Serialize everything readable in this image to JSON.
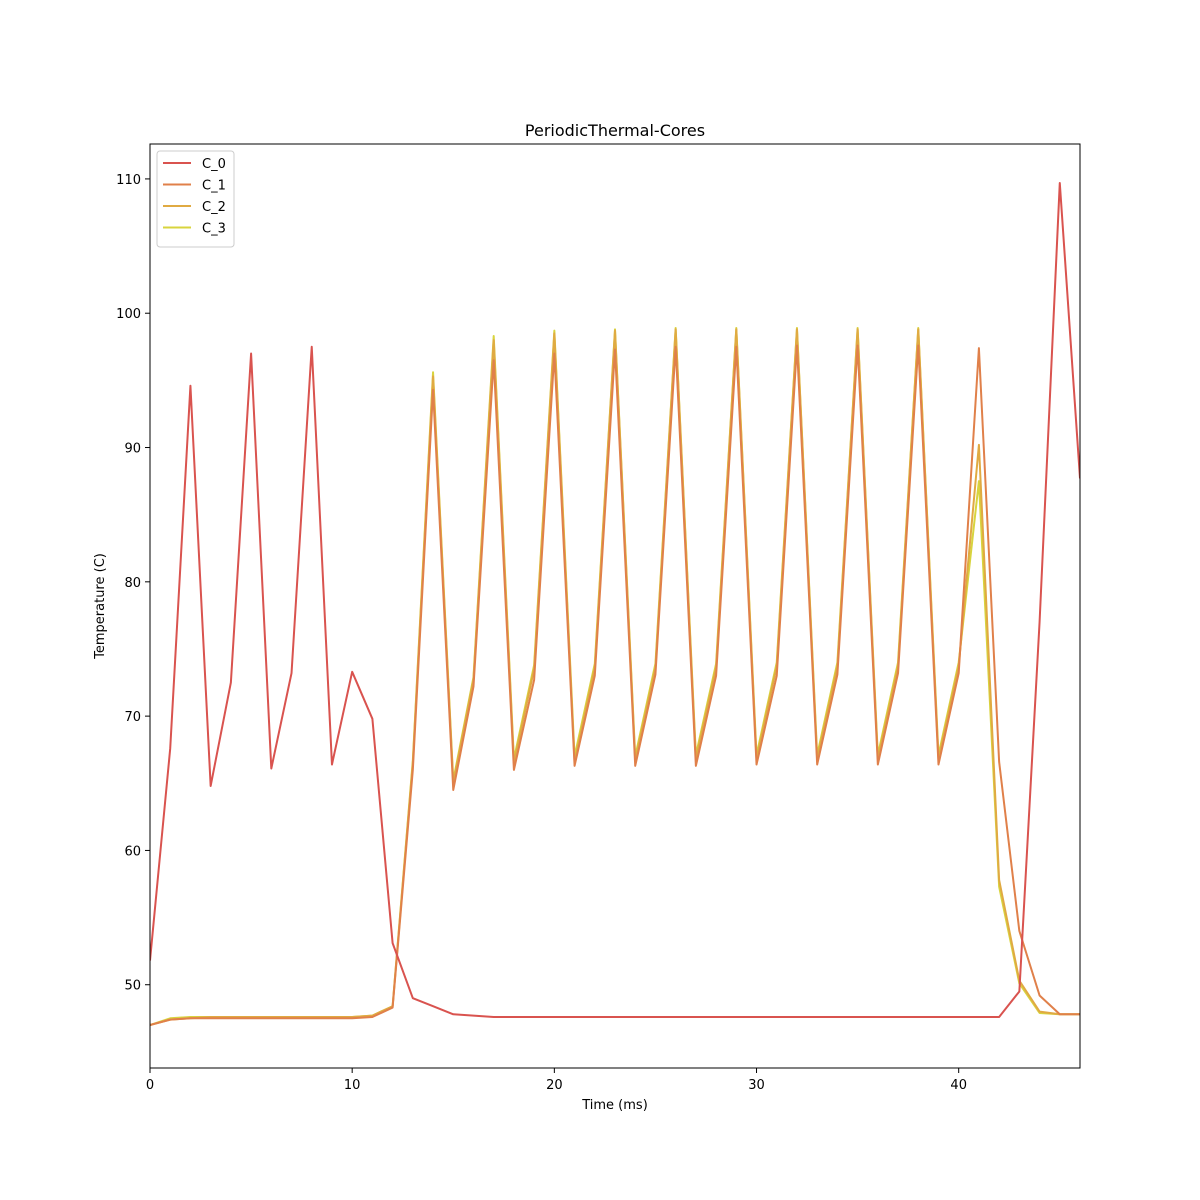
{
  "chart_data": {
    "type": "line",
    "title": "PeriodicThermal-Cores",
    "xlabel": "Time (ms)",
    "ylabel": "Temperature (C)",
    "xlim": [
      0,
      46
    ],
    "ylim": [
      43.8,
      112.6
    ],
    "xticks": [
      0,
      10,
      20,
      30,
      40
    ],
    "yticks": [
      50,
      60,
      70,
      80,
      90,
      100,
      110
    ],
    "grid": false,
    "legend_position": "upper-left",
    "x": [
      0,
      1,
      2,
      3,
      4,
      5,
      6,
      7,
      8,
      9,
      10,
      11,
      12,
      13,
      14,
      15,
      16,
      17,
      18,
      19,
      20,
      21,
      22,
      23,
      24,
      25,
      26,
      27,
      28,
      29,
      30,
      31,
      32,
      33,
      34,
      35,
      36,
      37,
      38,
      39,
      40,
      41,
      42,
      43,
      44,
      45,
      46
    ],
    "series": [
      {
        "name": "C_0",
        "color": "#d9534f",
        "values": [
          51.8,
          67.6,
          94.6,
          64.8,
          72.5,
          97.0,
          66.1,
          73.2,
          97.5,
          66.4,
          73.3,
          69.8,
          53.1,
          49.0,
          48.4,
          47.8,
          47.7,
          47.6,
          47.6,
          47.6,
          47.6,
          47.6,
          47.6,
          47.6,
          47.6,
          47.6,
          47.6,
          47.6,
          47.6,
          47.6,
          47.6,
          47.6,
          47.6,
          47.6,
          47.6,
          47.6,
          47.6,
          47.6,
          47.6,
          47.6,
          47.6,
          47.6,
          47.6,
          49.5,
          77.0,
          109.7,
          87.7
        ]
      },
      {
        "name": "C_1",
        "color": "#e0804a",
        "values": [
          47.0,
          47.4,
          47.5,
          47.5,
          47.5,
          47.5,
          47.5,
          47.5,
          47.5,
          47.5,
          47.5,
          47.6,
          48.3,
          66.0,
          94.3,
          64.5,
          72.2,
          96.5,
          66.0,
          72.7,
          97.0,
          66.3,
          73.0,
          97.3,
          66.3,
          73.1,
          97.5,
          66.3,
          73.0,
          97.5,
          66.4,
          73.0,
          97.6,
          66.4,
          73.1,
          97.6,
          66.4,
          73.2,
          97.6,
          66.4,
          73.2,
          97.4,
          66.6,
          54.0,
          49.2,
          47.8,
          47.8
        ]
      },
      {
        "name": "C_2",
        "color": "#e0aa42",
        "values": [
          47.0,
          47.4,
          47.5,
          47.6,
          47.6,
          47.6,
          47.6,
          47.6,
          47.6,
          47.6,
          47.6,
          47.7,
          48.4,
          66.5,
          95.3,
          65.0,
          72.7,
          98.0,
          66.5,
          73.5,
          98.5,
          66.6,
          73.6,
          98.7,
          66.7,
          73.6,
          98.8,
          66.8,
          73.6,
          98.8,
          66.8,
          73.7,
          98.8,
          66.8,
          73.7,
          98.8,
          66.8,
          73.7,
          98.8,
          66.8,
          73.7,
          90.2,
          57.8,
          50.3,
          48.0,
          47.8,
          47.8
        ]
      },
      {
        "name": "C_3",
        "color": "#d8d43e",
        "values": [
          47.0,
          47.5,
          47.6,
          47.6,
          47.6,
          47.6,
          47.6,
          47.6,
          47.6,
          47.6,
          47.6,
          47.7,
          48.4,
          66.7,
          95.6,
          65.2,
          72.9,
          98.3,
          66.8,
          73.8,
          98.7,
          67.0,
          73.9,
          98.8,
          67.0,
          73.9,
          98.9,
          67.1,
          73.9,
          98.9,
          67.1,
          74.0,
          98.9,
          67.1,
          74.0,
          98.9,
          67.1,
          74.0,
          98.9,
          67.1,
          74.0,
          87.5,
          57.3,
          50.1,
          47.9,
          47.8,
          47.8
        ]
      }
    ]
  }
}
